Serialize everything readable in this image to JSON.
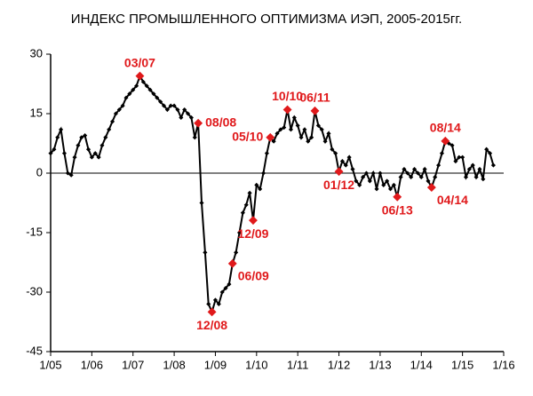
{
  "chart_data": {
    "type": "line",
    "title": "ИНДЕКС ПРОМЫШЛЕННОГО ОПТИМИЗМА ИЭП, 2005-2015гг.",
    "x": [
      "2005-01",
      "2005-02",
      "2005-03",
      "2005-04",
      "2005-05",
      "2005-06",
      "2005-07",
      "2005-08",
      "2005-09",
      "2005-10",
      "2005-11",
      "2005-12",
      "2006-01",
      "2006-02",
      "2006-03",
      "2006-04",
      "2006-05",
      "2006-06",
      "2006-07",
      "2006-08",
      "2006-09",
      "2006-10",
      "2006-11",
      "2006-12",
      "2007-01",
      "2007-02",
      "2007-03",
      "2007-04",
      "2007-05",
      "2007-06",
      "2007-07",
      "2007-08",
      "2007-09",
      "2007-10",
      "2007-11",
      "2007-12",
      "2008-01",
      "2008-02",
      "2008-03",
      "2008-04",
      "2008-05",
      "2008-06",
      "2008-07",
      "2008-08",
      "2008-09",
      "2008-10",
      "2008-11",
      "2008-12",
      "2009-01",
      "2009-02",
      "2009-03",
      "2009-04",
      "2009-05",
      "2009-06",
      "2009-07",
      "2009-08",
      "2009-09",
      "2009-10",
      "2009-11",
      "2009-12",
      "2010-01",
      "2010-02",
      "2010-03",
      "2010-04",
      "2010-05",
      "2010-06",
      "2010-07",
      "2010-08",
      "2010-09",
      "2010-10",
      "2010-11",
      "2010-12",
      "2011-01",
      "2011-02",
      "2011-03",
      "2011-04",
      "2011-05",
      "2011-06",
      "2011-07",
      "2011-08",
      "2011-09",
      "2011-10",
      "2011-11",
      "2011-12",
      "2012-01",
      "2012-02",
      "2012-03",
      "2012-04",
      "2012-05",
      "2012-06",
      "2012-07",
      "2012-08",
      "2012-09",
      "2012-10",
      "2012-11",
      "2012-12",
      "2013-01",
      "2013-02",
      "2013-03",
      "2013-04",
      "2013-05",
      "2013-06",
      "2013-07",
      "2013-08",
      "2013-09",
      "2013-10",
      "2013-11",
      "2013-12",
      "2014-01",
      "2014-02",
      "2014-03",
      "2014-04",
      "2014-05",
      "2014-06",
      "2014-07",
      "2014-08",
      "2014-09",
      "2014-10",
      "2014-11",
      "2014-12",
      "2015-01",
      "2015-02",
      "2015-03",
      "2015-04",
      "2015-05",
      "2015-06",
      "2015-07",
      "2015-08",
      "2015-09",
      "2015-10"
    ],
    "values": [
      5,
      6,
      9,
      11,
      5,
      0,
      -0.5,
      4,
      7,
      9,
      9.5,
      6,
      4,
      5,
      4,
      7,
      9,
      11,
      13,
      15,
      16,
      17,
      19,
      20,
      21,
      22,
      24.5,
      23,
      22,
      21,
      20,
      19,
      18,
      17,
      16,
      17,
      17,
      16,
      14,
      16,
      15,
      14,
      9,
      12.6,
      -7.5,
      -20,
      -33,
      -35,
      -32,
      -33,
      -30,
      -29,
      -28,
      -22.8,
      -20,
      -15,
      -10,
      -8,
      -5,
      -11.9,
      -3,
      -4,
      0,
      5,
      9,
      8,
      10,
      11,
      11.5,
      16,
      11,
      14,
      12,
      9,
      11,
      8,
      9,
      15.7,
      12,
      11,
      8,
      10,
      6,
      5,
      0.4,
      3,
      2,
      4,
      1,
      -2,
      -3,
      -1,
      0,
      -2,
      0,
      -4,
      0,
      -3,
      -2,
      -4,
      -3,
      -6,
      -1,
      1,
      0,
      -1,
      1,
      0,
      -1,
      1,
      -2,
      -3.6,
      -1,
      2,
      5,
      8.1,
      7.5,
      7,
      3,
      4,
      4,
      -1,
      1,
      2,
      -1,
      1,
      -1.5,
      6,
      5,
      2
    ],
    "color": "#000000",
    "annotation_color": "#e0191b",
    "annotations": [
      {
        "x": "2007-03",
        "label": "03/07",
        "position": "above"
      },
      {
        "x": "2008-08",
        "label": "08/08",
        "position": "right"
      },
      {
        "x": "2008-12",
        "label": "12/08",
        "position": "below"
      },
      {
        "x": "2009-06",
        "label": "06/09",
        "position": "below-right"
      },
      {
        "x": "2009-12",
        "label": "12/09",
        "position": "below"
      },
      {
        "x": "2010-05",
        "label": "05/10",
        "position": "left"
      },
      {
        "x": "2010-10",
        "label": "10/10",
        "position": "above"
      },
      {
        "x": "2011-06",
        "label": "06/11",
        "position": "above"
      },
      {
        "x": "2012-01",
        "label": "01/12",
        "position": "below"
      },
      {
        "x": "2013-06",
        "label": "06/13",
        "position": "below"
      },
      {
        "x": "2014-04",
        "label": "04/14",
        "position": "below-right"
      },
      {
        "x": "2014-08",
        "label": "08/14",
        "position": "above"
      }
    ],
    "xlim": [
      "2005-01",
      "2016-01"
    ],
    "xticks": [
      {
        "value": "2005-01",
        "label": "1/05"
      },
      {
        "value": "2006-01",
        "label": "1/06"
      },
      {
        "value": "2007-01",
        "label": "1/07"
      },
      {
        "value": "2008-01",
        "label": "1/08"
      },
      {
        "value": "2009-01",
        "label": "1/09"
      },
      {
        "value": "2010-01",
        "label": "1/10"
      },
      {
        "value": "2011-01",
        "label": "1/11"
      },
      {
        "value": "2012-01",
        "label": "1/12"
      },
      {
        "value": "2013-01",
        "label": "1/13"
      },
      {
        "value": "2014-01",
        "label": "1/14"
      },
      {
        "value": "2015-01",
        "label": "1/15"
      },
      {
        "value": "2016-01",
        "label": "1/16"
      }
    ],
    "ylim": [
      -45,
      30
    ],
    "yticks": [
      30,
      15,
      0,
      -15,
      -30,
      -45
    ]
  }
}
